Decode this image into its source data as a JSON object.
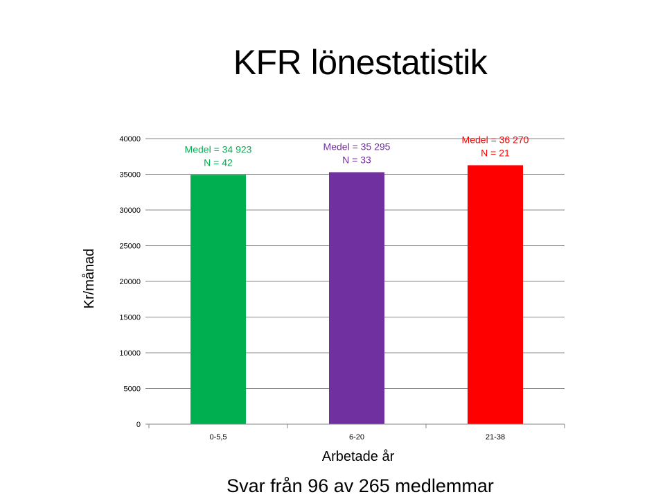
{
  "title": "KFR lönestatistik",
  "footer": "Svar från 96 av 265 medlemmar",
  "chart_data": {
    "type": "bar",
    "title": "",
    "xlabel": "Arbetade år",
    "ylabel": "Kr/månad",
    "ylim": [
      0,
      40000
    ],
    "yticks": [
      0,
      5000,
      10000,
      15000,
      20000,
      25000,
      30000,
      35000,
      40000
    ],
    "grid": true,
    "legend": "none",
    "categories": [
      "0-5,5",
      "6-20",
      "21-38"
    ],
    "values": [
      34923,
      35295,
      36270
    ],
    "colors": [
      "#00B050",
      "#7030A0",
      "#FF0000"
    ],
    "annotations": [
      {
        "line1": "Medel = 34 923",
        "line2": "N = 42",
        "color": "#00B050"
      },
      {
        "line1": "Medel = 35 295",
        "line2": "N = 33",
        "color": "#7030A0"
      },
      {
        "line1": "Medel = 36 270",
        "line2": "N = 21",
        "color": "#FF0000"
      }
    ]
  }
}
